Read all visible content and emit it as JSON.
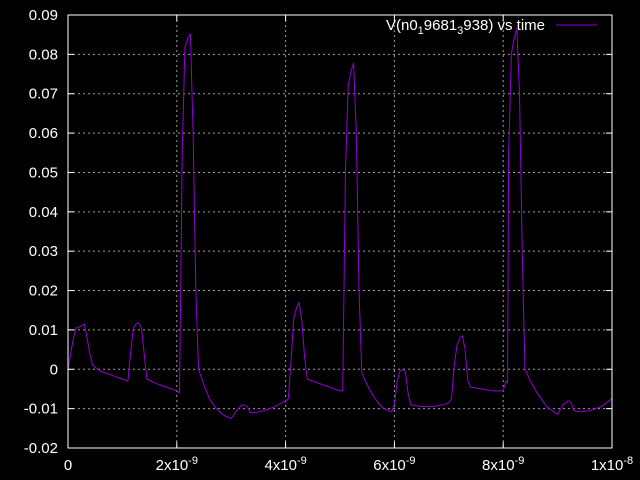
{
  "chart_data": {
    "type": "line",
    "title": "",
    "xlabel": "",
    "ylabel": "",
    "xlim": [
      0,
      1e-08
    ],
    "ylim": [
      -0.02,
      0.09
    ],
    "grid": true,
    "legend_position": "top-right",
    "x_ticks": [
      {
        "value": 0,
        "label": "0"
      },
      {
        "value": 2e-09,
        "base": "2x10",
        "exp": "-9"
      },
      {
        "value": 4e-09,
        "base": "4x10",
        "exp": "-9"
      },
      {
        "value": 6e-09,
        "base": "6x10",
        "exp": "-9"
      },
      {
        "value": 8e-09,
        "base": "8x10",
        "exp": "-9"
      },
      {
        "value": 1e-08,
        "base": "1x10",
        "exp": "-8"
      }
    ],
    "y_ticks": [
      {
        "value": 0.09,
        "label": "0.09"
      },
      {
        "value": 0.08,
        "label": "0.08"
      },
      {
        "value": 0.07,
        "label": "0.07"
      },
      {
        "value": 0.06,
        "label": "0.06"
      },
      {
        "value": 0.05,
        "label": "0.05"
      },
      {
        "value": 0.04,
        "label": "0.04"
      },
      {
        "value": 0.03,
        "label": "0.03"
      },
      {
        "value": 0.02,
        "label": "0.02"
      },
      {
        "value": 0.01,
        "label": "0.01"
      },
      {
        "value": 0,
        "label": "0"
      },
      {
        "value": -0.01,
        "label": "-0.01"
      },
      {
        "value": -0.02,
        "label": "-0.02"
      }
    ],
    "series": [
      {
        "name": "V(n0_1 9681_3 938) vs time",
        "legend_parts": [
          {
            "text": "V(n0",
            "sub": false
          },
          {
            "text": "1",
            "sub": true
          },
          {
            "text": "9681",
            "sub": false
          },
          {
            "text": "3",
            "sub": true
          },
          {
            "text": "938) vs time",
            "sub": false
          }
        ],
        "color": "#9400d3",
        "points": [
          [
            0,
            0.0
          ],
          [
            5e-11,
            0.004
          ],
          [
            1e-10,
            0.008
          ],
          [
            1.5e-10,
            0.0105
          ],
          [
            2.5e-10,
            0.011
          ],
          [
            3e-10,
            0.0115
          ],
          [
            3.5e-10,
            0.008
          ],
          [
            4e-10,
            0.004
          ],
          [
            4.5e-10,
            0.001
          ],
          [
            6e-10,
            -0.0005
          ],
          [
            8e-10,
            -0.0015
          ],
          [
            1e-09,
            -0.0025
          ],
          [
            1.1e-09,
            -0.003
          ],
          [
            1.15e-09,
            0.004
          ],
          [
            1.2e-09,
            0.0105
          ],
          [
            1.25e-09,
            0.0115
          ],
          [
            1.3e-09,
            0.0118
          ],
          [
            1.35e-09,
            0.0105
          ],
          [
            1.4e-09,
            0.004
          ],
          [
            1.45e-09,
            -0.0025
          ],
          [
            1.6e-09,
            -0.0035
          ],
          [
            1.8e-09,
            -0.0045
          ],
          [
            2e-09,
            -0.0055
          ],
          [
            2.05e-09,
            -0.006
          ],
          [
            2.1e-09,
            0.055
          ],
          [
            2.15e-09,
            0.082
          ],
          [
            2.2e-09,
            0.084
          ],
          [
            2.25e-09,
            0.0852
          ],
          [
            2.3e-09,
            0.06
          ],
          [
            2.35e-09,
            0.02
          ],
          [
            2.4e-09,
            0.0
          ],
          [
            2.5e-09,
            -0.004
          ],
          [
            2.6e-09,
            -0.0075
          ],
          [
            2.7e-09,
            -0.0095
          ],
          [
            2.8e-09,
            -0.011
          ],
          [
            2.9e-09,
            -0.012
          ],
          [
            3e-09,
            -0.0125
          ],
          [
            3.1e-09,
            -0.0105
          ],
          [
            3.2e-09,
            -0.009
          ],
          [
            3.3e-09,
            -0.0095
          ],
          [
            3.35e-09,
            -0.011
          ],
          [
            3.45e-09,
            -0.011
          ],
          [
            3.6e-09,
            -0.0105
          ],
          [
            3.8e-09,
            -0.0095
          ],
          [
            4e-09,
            -0.008
          ],
          [
            4.05e-09,
            -0.0075
          ],
          [
            4.1e-09,
            0.002
          ],
          [
            4.15e-09,
            0.013
          ],
          [
            4.2e-09,
            0.0155
          ],
          [
            4.25e-09,
            0.017
          ],
          [
            4.3e-09,
            0.012
          ],
          [
            4.35e-09,
            0.003
          ],
          [
            4.4e-09,
            -0.0025
          ],
          [
            4.6e-09,
            -0.0035
          ],
          [
            4.8e-09,
            -0.0045
          ],
          [
            5e-09,
            -0.0055
          ],
          [
            5.05e-09,
            -0.0055
          ],
          [
            5.1e-09,
            0.05
          ],
          [
            5.15e-09,
            0.072
          ],
          [
            5.2e-09,
            0.0755
          ],
          [
            5.25e-09,
            0.0778
          ],
          [
            5.3e-09,
            0.06
          ],
          [
            5.35e-09,
            0.02
          ],
          [
            5.4e-09,
            -0.001
          ],
          [
            5.5e-09,
            -0.004
          ],
          [
            5.6e-09,
            -0.0065
          ],
          [
            5.7e-09,
            -0.0085
          ],
          [
            5.8e-09,
            -0.01
          ],
          [
            5.9e-09,
            -0.0105
          ],
          [
            5.95e-09,
            -0.0108
          ],
          [
            6e-09,
            -0.009
          ],
          [
            6.05e-09,
            -0.003
          ],
          [
            6.1e-09,
            -0.0005
          ],
          [
            6.15e-09,
            0.0
          ],
          [
            6.2e-09,
            -0.0005
          ],
          [
            6.25e-09,
            -0.006
          ],
          [
            6.3e-09,
            -0.009
          ],
          [
            6.5e-09,
            -0.0095
          ],
          [
            6.7e-09,
            -0.0095
          ],
          [
            6.9e-09,
            -0.009
          ],
          [
            7e-09,
            -0.0085
          ],
          [
            7.05e-09,
            -0.0075
          ],
          [
            7.1e-09,
            0.001
          ],
          [
            7.15e-09,
            0.006
          ],
          [
            7.2e-09,
            0.008
          ],
          [
            7.25e-09,
            0.0085
          ],
          [
            7.3e-09,
            0.005
          ],
          [
            7.35e-09,
            -0.003
          ],
          [
            7.4e-09,
            -0.0045
          ],
          [
            7.6e-09,
            -0.005
          ],
          [
            7.8e-09,
            -0.0055
          ],
          [
            8e-09,
            -0.0055
          ],
          [
            8.05e-09,
            -0.003
          ],
          [
            8.08e-09,
            -0.0035
          ],
          [
            8.1e-09,
            0.055
          ],
          [
            8.15e-09,
            0.08
          ],
          [
            8.2e-09,
            0.084
          ],
          [
            8.25e-09,
            0.0865
          ],
          [
            8.3e-09,
            0.07
          ],
          [
            8.35e-09,
            0.03
          ],
          [
            8.4e-09,
            0.0
          ],
          [
            8.5e-09,
            -0.003
          ],
          [
            8.6e-09,
            -0.0055
          ],
          [
            8.7e-09,
            -0.0075
          ],
          [
            8.8e-09,
            -0.0095
          ],
          [
            8.9e-09,
            -0.0105
          ],
          [
            9e-09,
            -0.0115
          ],
          [
            9.1e-09,
            -0.009
          ],
          [
            9.2e-09,
            -0.008
          ],
          [
            9.25e-09,
            -0.0085
          ],
          [
            9.3e-09,
            -0.0105
          ],
          [
            9.4e-09,
            -0.0108
          ],
          [
            9.6e-09,
            -0.0105
          ],
          [
            9.8e-09,
            -0.0095
          ],
          [
            1e-08,
            -0.0075
          ]
        ]
      }
    ]
  }
}
